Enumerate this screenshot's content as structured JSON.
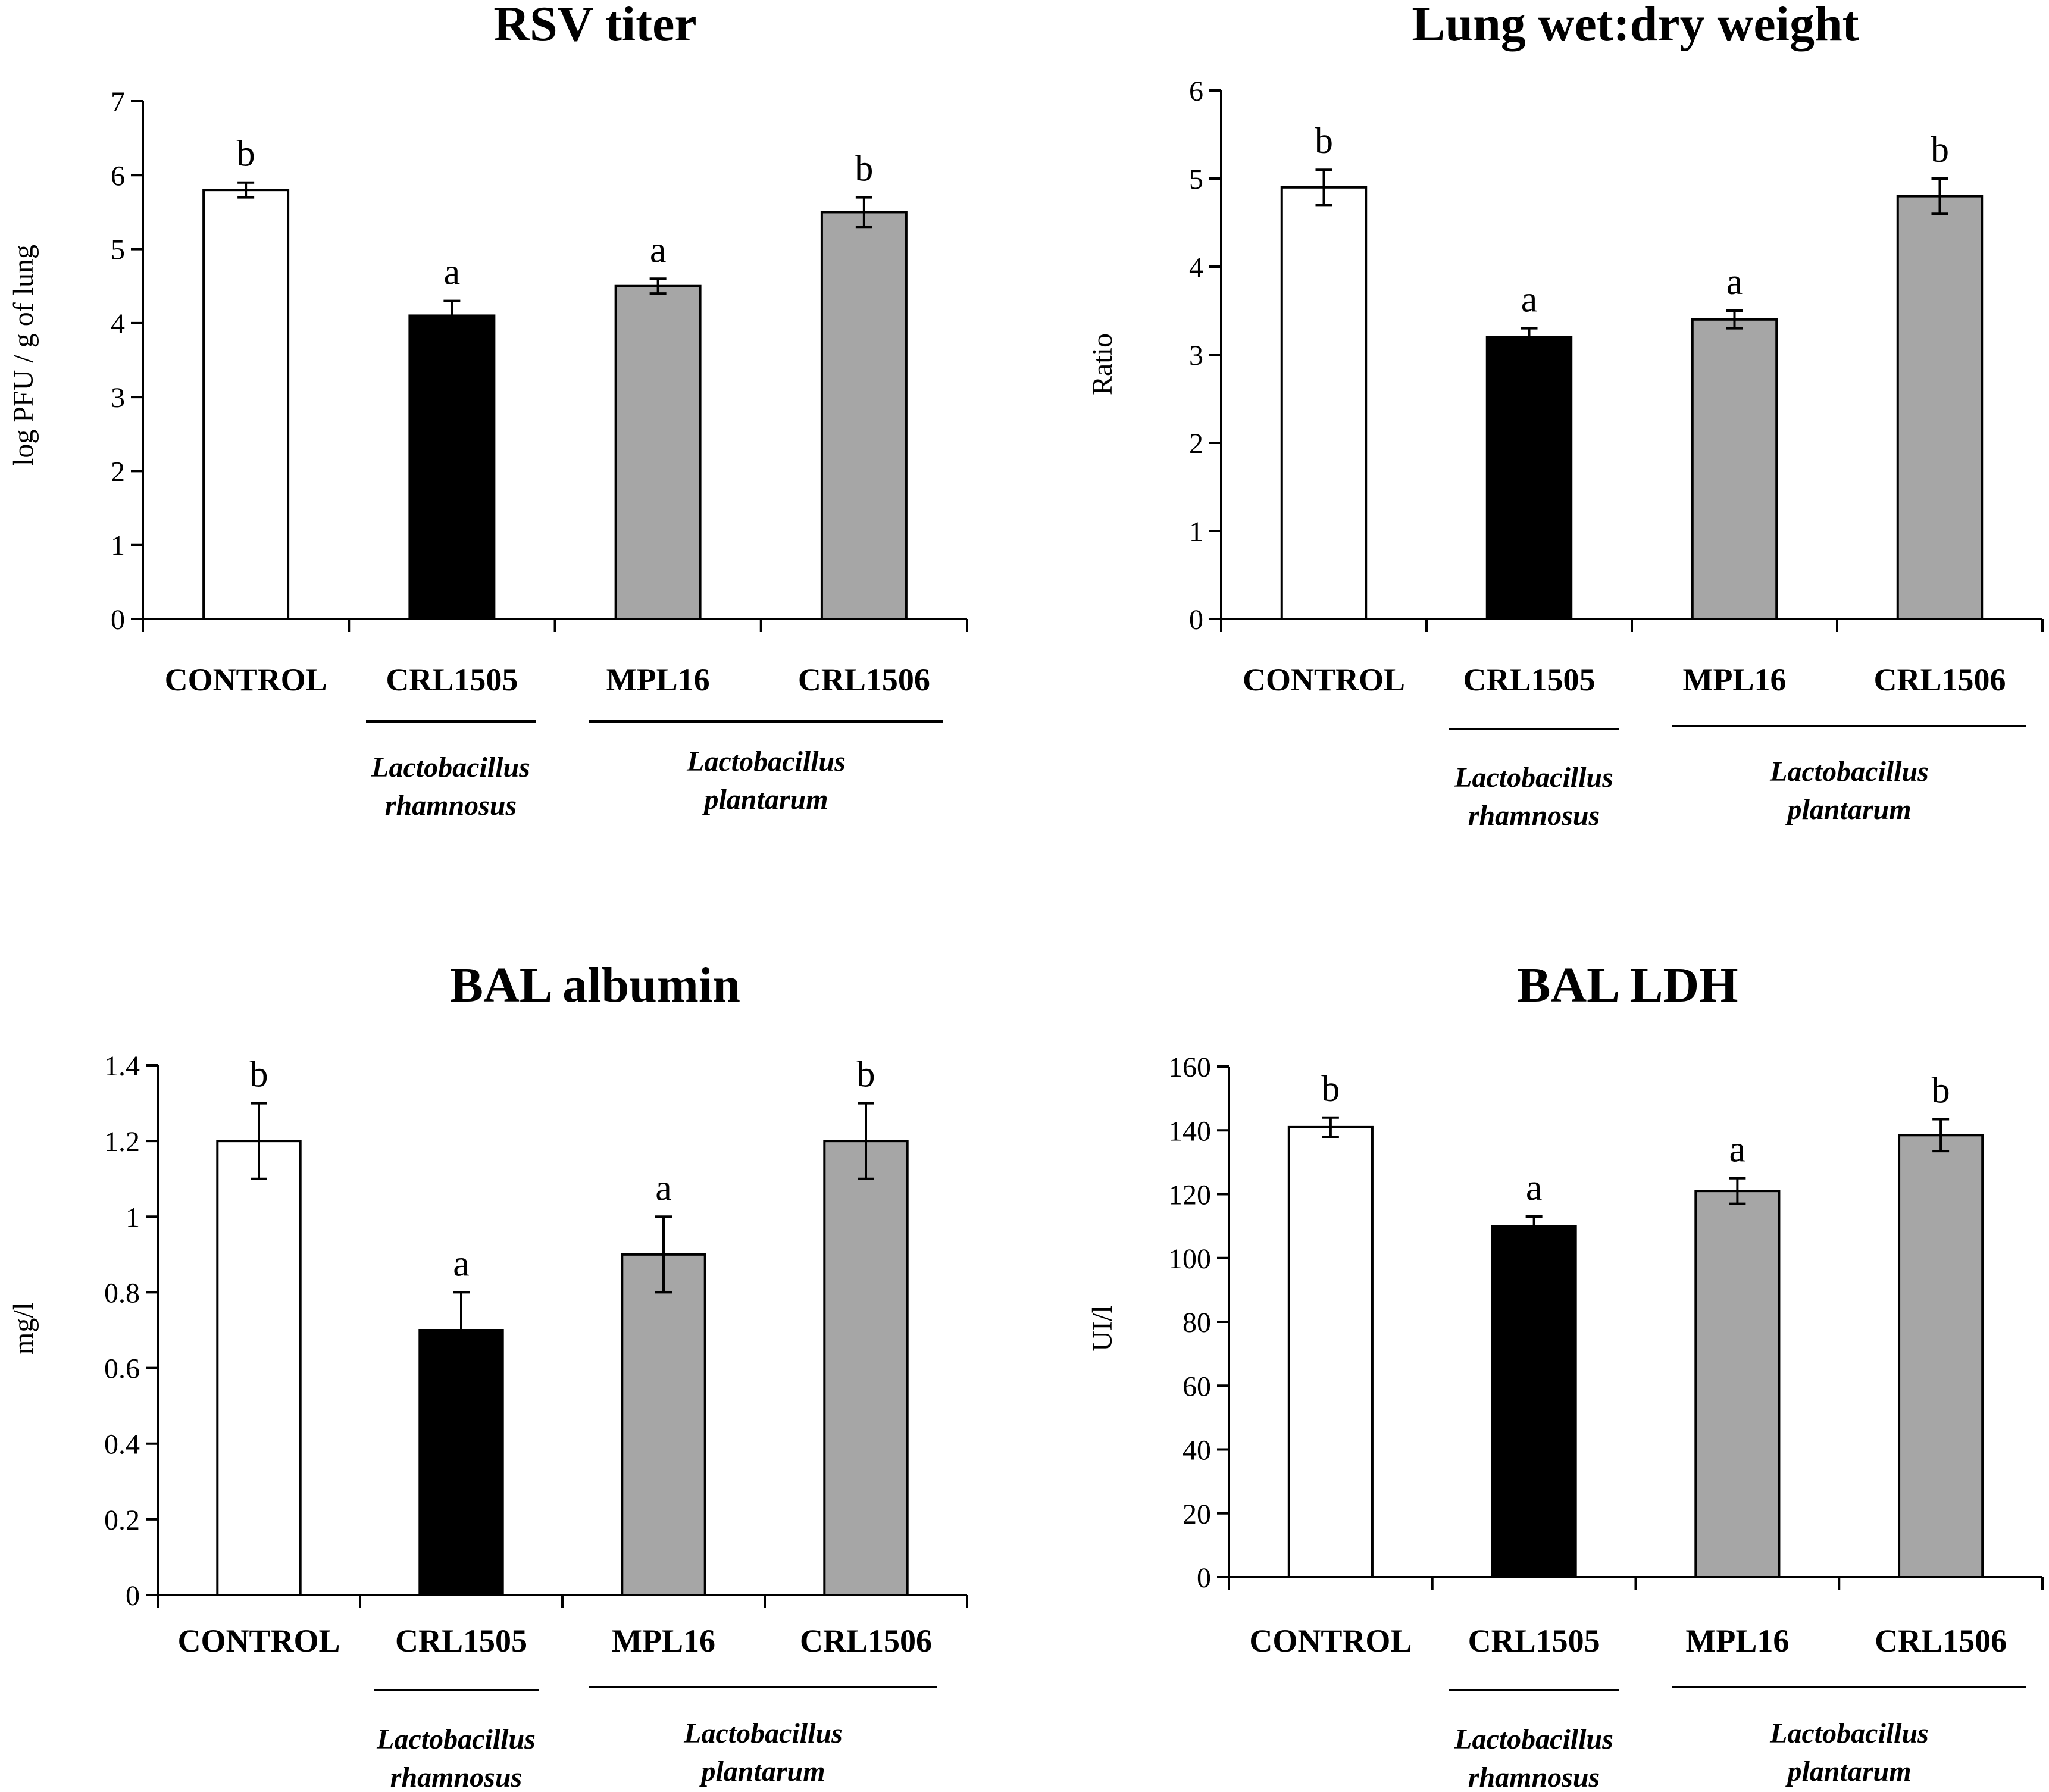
{
  "chart_data": [
    {
      "type": "bar",
      "title": "RSV titer",
      "ylabel": "log PFU / g of lung",
      "xlabel": "",
      "ylim": [
        0,
        7
      ],
      "yticks": [
        0,
        1,
        2,
        3,
        4,
        5,
        6,
        7
      ],
      "categories": [
        "CONTROL",
        "CRL1505",
        "MPL16",
        "CRL1506"
      ],
      "values": [
        5.8,
        4.1,
        4.5,
        5.5
      ],
      "errors": [
        0.1,
        0.2,
        0.1,
        0.2
      ],
      "significance": [
        "b",
        "a",
        "a",
        "b"
      ],
      "bar_colors": [
        "#ffffff",
        "#000000",
        "#a6a6a6",
        "#a6a6a6"
      ],
      "groups": [
        {
          "line1": "Lactobacillus",
          "line2": "rhamnosus",
          "members": [
            "CRL1505"
          ]
        },
        {
          "line1": "Lactobacillus",
          "line2": "plantarum",
          "members": [
            "MPL16",
            "CRL1506"
          ]
        }
      ]
    },
    {
      "type": "bar",
      "title": "Lung wet:dry weight",
      "ylabel": "Ratio",
      "xlabel": "",
      "ylim": [
        0,
        6
      ],
      "yticks": [
        0,
        1,
        2,
        3,
        4,
        5,
        6
      ],
      "categories": [
        "CONTROL",
        "CRL1505",
        "MPL16",
        "CRL1506"
      ],
      "values": [
        4.9,
        3.2,
        3.4,
        4.8
      ],
      "errors": [
        0.2,
        0.1,
        0.1,
        0.2
      ],
      "significance": [
        "b",
        "a",
        "a",
        "b"
      ],
      "bar_colors": [
        "#ffffff",
        "#000000",
        "#a6a6a6",
        "#a6a6a6"
      ],
      "groups": [
        {
          "line1": "Lactobacillus",
          "line2": "rhamnosus",
          "members": [
            "CRL1505"
          ]
        },
        {
          "line1": "Lactobacillus",
          "line2": "plantarum",
          "members": [
            "MPL16",
            "CRL1506"
          ]
        }
      ]
    },
    {
      "type": "bar",
      "title": "BAL albumin",
      "ylabel": "mg/l",
      "xlabel": "",
      "ylim": [
        0,
        1.4
      ],
      "yticks": [
        "0",
        "0.2",
        "0.4",
        "0.6",
        "0.8",
        "1",
        "1.2",
        "1.4"
      ],
      "categories": [
        "CONTROL",
        "CRL1505",
        "MPL16",
        "CRL1506"
      ],
      "values": [
        1.2,
        0.7,
        0.9,
        1.2
      ],
      "errors": [
        0.1,
        0.1,
        0.1,
        0.1
      ],
      "significance": [
        "b",
        "a",
        "a",
        "b"
      ],
      "bar_colors": [
        "#ffffff",
        "#000000",
        "#a6a6a6",
        "#a6a6a6"
      ],
      "groups": [
        {
          "line1": "Lactobacillus",
          "line2": "rhamnosus",
          "members": [
            "CRL1505"
          ]
        },
        {
          "line1": "Lactobacillus",
          "line2": "plantarum",
          "members": [
            "MPL16",
            "CRL1506"
          ]
        }
      ]
    },
    {
      "type": "bar",
      "title": "BAL LDH",
      "ylabel": "UI/l",
      "xlabel": "",
      "ylim": [
        0,
        160
      ],
      "yticks": [
        0,
        20,
        40,
        60,
        80,
        100,
        120,
        140,
        160
      ],
      "categories": [
        "CONTROL",
        "CRL1505",
        "MPL16",
        "CRL1506"
      ],
      "values": [
        141,
        110,
        121,
        138.5
      ],
      "errors": [
        3,
        3,
        4,
        5
      ],
      "significance": [
        "b",
        "a",
        "a",
        "b"
      ],
      "bar_colors": [
        "#ffffff",
        "#000000",
        "#a6a6a6",
        "#a6a6a6"
      ],
      "groups": [
        {
          "line1": "Lactobacillus",
          "line2": "rhamnosus",
          "members": [
            "CRL1505"
          ]
        },
        {
          "line1": "Lactobacillus",
          "line2": "plantarum",
          "members": [
            "MPL16",
            "CRL1506"
          ]
        }
      ]
    }
  ]
}
